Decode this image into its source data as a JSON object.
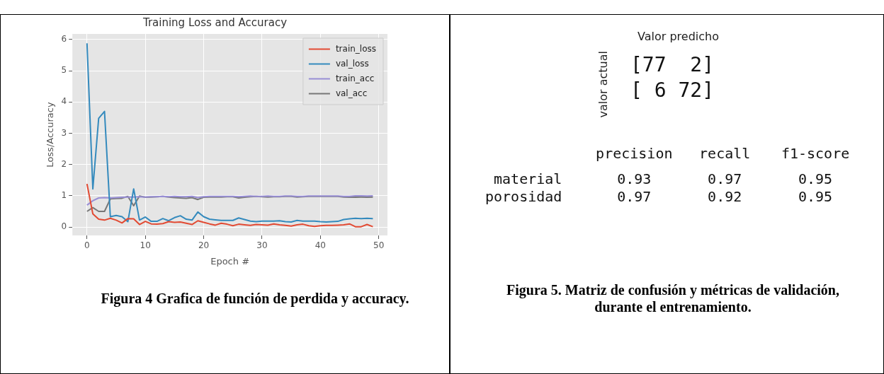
{
  "chart_data": [
    {
      "type": "line",
      "title": "Training Loss and Accuracy",
      "xlabel": "Epoch #",
      "ylabel": "Loss/Accuracy",
      "x": [
        0,
        1,
        2,
        3,
        4,
        5,
        6,
        7,
        8,
        9,
        10,
        11,
        12,
        13,
        14,
        15,
        16,
        17,
        18,
        19,
        20,
        21,
        22,
        23,
        24,
        25,
        26,
        27,
        28,
        29,
        30,
        31,
        32,
        33,
        34,
        35,
        36,
        37,
        38,
        39,
        40,
        41,
        42,
        43,
        44,
        45,
        46,
        47,
        48,
        49
      ],
      "series": [
        {
          "name": "train_loss",
          "color": "#e24a33",
          "values": [
            1.38,
            0.42,
            0.25,
            0.22,
            0.28,
            0.22,
            0.13,
            0.27,
            0.26,
            0.08,
            0.18,
            0.1,
            0.09,
            0.11,
            0.17,
            0.15,
            0.16,
            0.12,
            0.08,
            0.2,
            0.15,
            0.1,
            0.06,
            0.12,
            0.09,
            0.04,
            0.09,
            0.07,
            0.05,
            0.08,
            0.07,
            0.06,
            0.1,
            0.07,
            0.05,
            0.03,
            0.07,
            0.09,
            0.04,
            0.02,
            0.04,
            0.05,
            0.05,
            0.06,
            0.07,
            0.1,
            0.01,
            0.01,
            0.08,
            0.01
          ]
        },
        {
          "name": "val_loss",
          "color": "#348abd",
          "values": [
            5.88,
            1.22,
            3.48,
            3.7,
            0.33,
            0.37,
            0.33,
            0.17,
            1.22,
            0.22,
            0.32,
            0.18,
            0.18,
            0.27,
            0.2,
            0.3,
            0.36,
            0.25,
            0.22,
            0.48,
            0.33,
            0.25,
            0.23,
            0.21,
            0.21,
            0.21,
            0.29,
            0.24,
            0.19,
            0.17,
            0.19,
            0.19,
            0.19,
            0.2,
            0.17,
            0.16,
            0.21,
            0.19,
            0.19,
            0.19,
            0.17,
            0.16,
            0.17,
            0.18,
            0.24,
            0.26,
            0.28,
            0.27,
            0.28,
            0.27
          ]
        },
        {
          "name": "train_acc",
          "color": "#988ed5",
          "values": [
            0.7,
            0.84,
            0.93,
            0.94,
            0.93,
            0.94,
            0.95,
            0.96,
            0.96,
            0.97,
            0.96,
            0.97,
            0.97,
            0.98,
            0.97,
            0.98,
            0.97,
            0.97,
            0.98,
            0.94,
            0.97,
            0.98,
            0.98,
            0.98,
            0.98,
            0.98,
            0.97,
            0.98,
            0.99,
            0.98,
            0.98,
            0.99,
            0.98,
            0.98,
            0.99,
            0.99,
            0.98,
            0.98,
            0.99,
            0.99,
            0.99,
            0.99,
            0.99,
            0.99,
            0.98,
            0.98,
            1.0,
            1.0,
            0.99,
            1.0
          ]
        },
        {
          "name": "val_acc",
          "color": "#777777",
          "values": [
            0.5,
            0.62,
            0.5,
            0.5,
            0.9,
            0.91,
            0.92,
            0.98,
            0.68,
            0.99,
            0.95,
            0.96,
            0.97,
            0.98,
            0.96,
            0.94,
            0.93,
            0.92,
            0.94,
            0.88,
            0.95,
            0.96,
            0.96,
            0.96,
            0.97,
            0.97,
            0.93,
            0.95,
            0.97,
            0.98,
            0.97,
            0.96,
            0.97,
            0.97,
            0.98,
            0.98,
            0.96,
            0.97,
            0.98,
            0.98,
            0.98,
            0.98,
            0.98,
            0.98,
            0.96,
            0.95,
            0.95,
            0.96,
            0.95,
            0.96
          ]
        }
      ],
      "xlim": [
        -2.5,
        51.5
      ],
      "xticks": [
        0,
        10,
        20,
        30,
        40,
        50
      ],
      "ylim": [
        -0.27,
        6.18
      ],
      "yticks": [
        0,
        1,
        2,
        3,
        4,
        5,
        6
      ],
      "grid": true,
      "legend": "top right",
      "marker": "none",
      "line_style": "solid",
      "annotations": [
        "Figura 4 Grafica de función de perdida y accuracy."
      ]
    },
    {
      "type": "other",
      "title": "Valor predicho",
      "ylabel": "valor actual",
      "annotations": [
        "[77  2]",
        "[ 6 72]"
      ]
    },
    {
      "type": "heatmap",
      "categories": [
        "precision",
        "recall",
        "f1-score"
      ],
      "y_categories": [
        "material",
        "porosidad"
      ],
      "cells": [
        [
          0.93,
          0.97,
          0.95
        ],
        [
          0.97,
          0.92,
          0.95
        ]
      ],
      "data_labels": true,
      "annotations": [
        "Figura 5. Matriz de confusión y métricas de validación, durante el entrenamiento."
      ]
    }
  ]
}
